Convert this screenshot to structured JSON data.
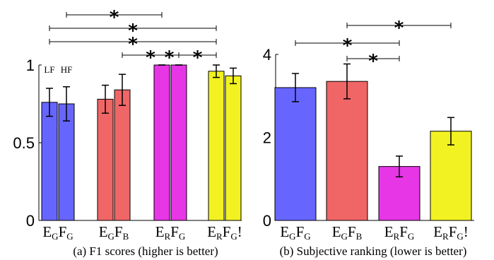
{
  "chart_data": [
    {
      "type": "bar",
      "title": "",
      "caption": "(a) F1 scores (higher is better)",
      "xlabel": "",
      "ylabel": "",
      "ylim": [
        0,
        1
      ],
      "yticks": [
        "0",
        "0.5",
        "1"
      ],
      "grid": false,
      "categories": [
        {
          "main1": "E",
          "sub1": "G",
          "main2": "F",
          "sub2": "G",
          "suffix": ""
        },
        {
          "main1": "E",
          "sub1": "G",
          "main2": "F",
          "sub2": "B",
          "suffix": ""
        },
        {
          "main1": "E",
          "sub1": "R",
          "main2": "F",
          "sub2": "G",
          "suffix": ""
        },
        {
          "main1": "E",
          "sub1": "R",
          "main2": "F",
          "sub2": "G",
          "suffix": "!"
        }
      ],
      "bar_labels": [
        "LF",
        "HF"
      ],
      "colors": [
        "#6666ff",
        "#f06666",
        "#e636e6",
        "#f2f222"
      ],
      "values": [
        [
          0.76,
          0.75
        ],
        [
          0.78,
          0.84
        ],
        [
          1.0,
          1.0
        ],
        [
          0.96,
          0.93
        ]
      ],
      "errors": [
        [
          0.09,
          0.11
        ],
        [
          0.09,
          0.1
        ],
        [
          0.0,
          0.0
        ],
        [
          0.04,
          0.05
        ]
      ],
      "significance": [
        {
          "from": [
            0,
            1
          ],
          "to": [
            2,
            0
          ],
          "label": "*"
        },
        {
          "from": [
            0,
            0
          ],
          "to": [
            3,
            0
          ],
          "label": "*"
        },
        {
          "from": [
            0,
            0
          ],
          "to": [
            3,
            0
          ],
          "label": "*"
        },
        {
          "from": [
            1,
            1
          ],
          "to": [
            3,
            0
          ],
          "label": "*"
        },
        {
          "from": [
            1,
            1
          ],
          "to": [
            2,
            1
          ],
          "label": "*"
        },
        {
          "from": [
            2,
            1
          ],
          "to": [
            3,
            0
          ],
          "label": "*"
        }
      ]
    },
    {
      "type": "bar",
      "title": "",
      "caption": "(b) Subjective ranking (lower is better)",
      "xlabel": "",
      "ylabel": "",
      "ylim": [
        0,
        4
      ],
      "yticks": [
        "0",
        "2",
        "4"
      ],
      "grid": false,
      "categories": [
        {
          "main1": "E",
          "sub1": "G",
          "main2": "F",
          "sub2": "G",
          "suffix": ""
        },
        {
          "main1": "E",
          "sub1": "G",
          "main2": "F",
          "sub2": "B",
          "suffix": ""
        },
        {
          "main1": "E",
          "sub1": "R",
          "main2": "F",
          "sub2": "G",
          "suffix": ""
        },
        {
          "main1": "E",
          "sub1": "R",
          "main2": "F",
          "sub2": "G",
          "suffix": "!"
        }
      ],
      "colors": [
        "#6666ff",
        "#f06666",
        "#e636e6",
        "#f2f222"
      ],
      "values": [
        3.2,
        3.35,
        1.3,
        2.15
      ],
      "errors": [
        0.34,
        0.42,
        0.25,
        0.33
      ],
      "significance": [
        {
          "from": 1,
          "to": 3,
          "label": "*"
        },
        {
          "from": 0,
          "to": 2,
          "label": "*"
        },
        {
          "from": 1,
          "to": 2,
          "label": "*"
        }
      ]
    }
  ]
}
